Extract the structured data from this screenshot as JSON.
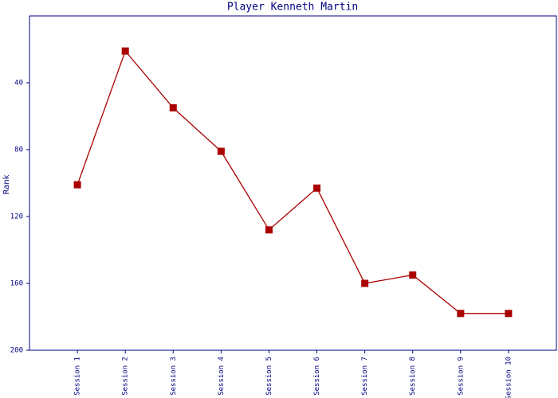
{
  "chart_data": {
    "type": "line",
    "title": "Player Kenneth Martin",
    "y_label": "Rank",
    "categories": [
      "Session 1",
      "Session 2",
      "Session 3",
      "Session 4",
      "Session 5",
      "Session 6",
      "Session 7",
      "Session 8",
      "Session 9",
      "Session 10"
    ],
    "series": [
      {
        "name": "Rank",
        "color": "#aa0000",
        "values": [
          101,
          21,
          55,
          81,
          128,
          103,
          160,
          155,
          178,
          178
        ]
      }
    ],
    "ylim": [
      0,
      200
    ],
    "y_inverted": true,
    "yticks": [
      40,
      80,
      120,
      160,
      200
    ],
    "grid": false
  }
}
